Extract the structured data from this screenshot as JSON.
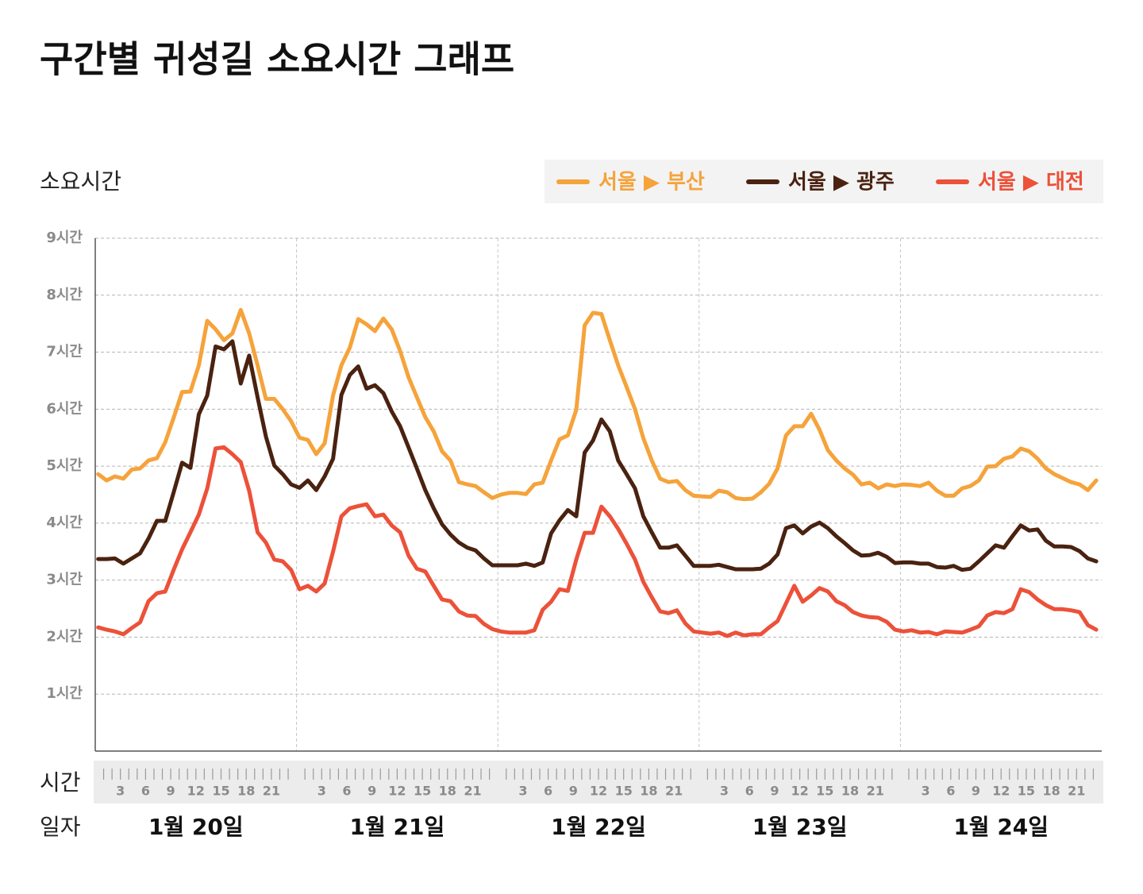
{
  "chart_data": {
    "type": "line",
    "title": "구간별 귀성길 소요시간 그래프",
    "ylabel": "소요시간",
    "hour_axis_label": "시간",
    "day_axis_label": "일자",
    "days": [
      "1월 20일",
      "1월 21일",
      "1월 22일",
      "1월 23일",
      "1월 24일"
    ],
    "xlim": [
      0,
      24
    ],
    "xticks": [
      3,
      6,
      9,
      12,
      15,
      18,
      21
    ],
    "ylim": [
      0,
      9
    ],
    "yticks": [
      {
        "value": 1,
        "label": "1시간"
      },
      {
        "value": 2,
        "label": "2시간"
      },
      {
        "value": 3,
        "label": "3시간"
      },
      {
        "value": 4,
        "label": "4시간"
      },
      {
        "value": 5,
        "label": "5시간"
      },
      {
        "value": 6,
        "label": "6시간"
      },
      {
        "value": 7,
        "label": "7시간"
      },
      {
        "value": 8,
        "label": "8시간"
      },
      {
        "value": 9,
        "label": "9시간"
      }
    ],
    "grid": true,
    "legend": "top-right",
    "series": [
      {
        "name": "서울 ▶ 부산",
        "color": "#f5a33b",
        "values": [
          4.86,
          4.75,
          4.82,
          4.78,
          4.94,
          4.96,
          5.1,
          5.14,
          5.42,
          5.85,
          6.3,
          6.31,
          6.77,
          7.55,
          7.4,
          7.21,
          7.33,
          7.74,
          7.33,
          6.77,
          6.18,
          6.18,
          6.0,
          5.79,
          5.5,
          5.46,
          5.21,
          5.4,
          6.24,
          6.77,
          7.08,
          7.58,
          7.49,
          7.37,
          7.59,
          7.4,
          7.02,
          6.56,
          6.21,
          5.86,
          5.61,
          5.26,
          5.1,
          4.72,
          4.68,
          4.65,
          4.54,
          4.44,
          4.5,
          4.53,
          4.53,
          4.51,
          4.68,
          4.71,
          5.1,
          5.47,
          5.54,
          5.99,
          7.47,
          7.69,
          7.67,
          7.21,
          6.77,
          6.39,
          6.0,
          5.49,
          5.1,
          4.78,
          4.72,
          4.74,
          4.58,
          4.48,
          4.47,
          4.46,
          4.57,
          4.54,
          4.44,
          4.42,
          4.43,
          4.54,
          4.69,
          4.96,
          5.54,
          5.7,
          5.7,
          5.92,
          5.64,
          5.28,
          5.1,
          4.96,
          4.85,
          4.68,
          4.71,
          4.61,
          4.68,
          4.65,
          4.68,
          4.67,
          4.65,
          4.71,
          4.57,
          4.48,
          4.48,
          4.61,
          4.65,
          4.75,
          4.99,
          5.0,
          5.13,
          5.17,
          5.31,
          5.26,
          5.13,
          4.96,
          4.86,
          4.79,
          4.72,
          4.68,
          4.58,
          4.75
        ]
      },
      {
        "name": "서울 ▶ 광주",
        "color": "#4a2210",
        "values": [
          3.37,
          3.37,
          3.38,
          3.29,
          3.38,
          3.47,
          3.73,
          4.04,
          4.04,
          4.54,
          5.06,
          4.97,
          5.91,
          6.24,
          7.1,
          7.05,
          7.19,
          6.45,
          6.94,
          6.21,
          5.52,
          5.01,
          4.86,
          4.68,
          4.62,
          4.75,
          4.58,
          4.82,
          5.13,
          6.25,
          6.6,
          6.75,
          6.36,
          6.42,
          6.28,
          5.96,
          5.7,
          5.33,
          4.96,
          4.58,
          4.26,
          3.98,
          3.8,
          3.66,
          3.57,
          3.52,
          3.38,
          3.26,
          3.26,
          3.26,
          3.26,
          3.29,
          3.25,
          3.31,
          3.82,
          4.05,
          4.23,
          4.12,
          5.24,
          5.45,
          5.82,
          5.61,
          5.1,
          4.86,
          4.61,
          4.12,
          3.84,
          3.57,
          3.57,
          3.61,
          3.43,
          3.25,
          3.25,
          3.25,
          3.27,
          3.23,
          3.19,
          3.19,
          3.19,
          3.2,
          3.29,
          3.45,
          3.91,
          3.96,
          3.82,
          3.94,
          4.01,
          3.91,
          3.77,
          3.65,
          3.52,
          3.43,
          3.44,
          3.48,
          3.41,
          3.3,
          3.31,
          3.31,
          3.29,
          3.29,
          3.23,
          3.22,
          3.25,
          3.18,
          3.2,
          3.33,
          3.47,
          3.61,
          3.57,
          3.77,
          3.96,
          3.87,
          3.89,
          3.69,
          3.59,
          3.59,
          3.58,
          3.51,
          3.38,
          3.33
        ]
      },
      {
        "name": "서울 ▶ 대전",
        "color": "#ec5139",
        "values": [
          2.17,
          2.13,
          2.1,
          2.05,
          2.16,
          2.26,
          2.63,
          2.77,
          2.8,
          3.18,
          3.54,
          3.84,
          4.15,
          4.61,
          5.31,
          5.33,
          5.21,
          5.07,
          4.57,
          3.84,
          3.66,
          3.36,
          3.33,
          3.18,
          2.84,
          2.9,
          2.8,
          2.94,
          3.5,
          4.12,
          4.26,
          4.3,
          4.33,
          4.12,
          4.15,
          3.96,
          3.84,
          3.43,
          3.2,
          3.15,
          2.9,
          2.66,
          2.63,
          2.45,
          2.38,
          2.37,
          2.23,
          2.14,
          2.1,
          2.08,
          2.08,
          2.08,
          2.12,
          2.48,
          2.62,
          2.84,
          2.81,
          3.36,
          3.83,
          3.83,
          4.29,
          4.12,
          3.9,
          3.64,
          3.36,
          2.97,
          2.7,
          2.45,
          2.42,
          2.47,
          2.24,
          2.1,
          2.08,
          2.06,
          2.08,
          2.02,
          2.08,
          2.03,
          2.05,
          2.05,
          2.17,
          2.28,
          2.59,
          2.9,
          2.62,
          2.73,
          2.86,
          2.8,
          2.63,
          2.56,
          2.44,
          2.38,
          2.35,
          2.34,
          2.27,
          2.13,
          2.1,
          2.12,
          2.08,
          2.09,
          2.05,
          2.1,
          2.09,
          2.08,
          2.13,
          2.19,
          2.38,
          2.44,
          2.42,
          2.49,
          2.84,
          2.79,
          2.66,
          2.56,
          2.49,
          2.49,
          2.47,
          2.44,
          2.21,
          2.13
        ]
      }
    ]
  }
}
